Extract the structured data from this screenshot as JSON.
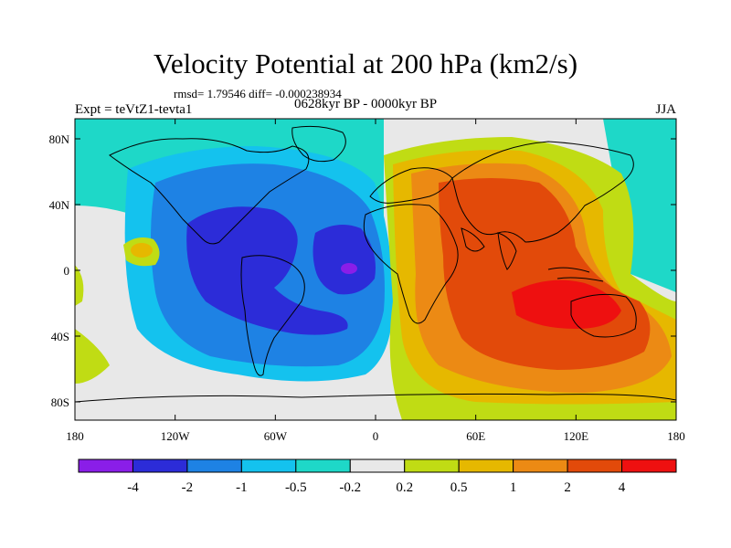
{
  "header": {
    "title": "Velocity Potential at 200 hPa (km2/s)",
    "stats": "rmsd= 1.79546 diff= -0.000238934",
    "experiment": "Expt = teVtZ1-tevta1",
    "period": "0628kyr BP - 0000kyr BP",
    "season": "JJA"
  },
  "map": {
    "x_ticks": [
      "180",
      "120W",
      "60W",
      "0",
      "60E",
      "120E",
      "180"
    ],
    "y_ticks": [
      "80N",
      "40N",
      "0",
      "40S",
      "80S"
    ],
    "colors": {
      "c_lt_m4": "#8a1ee8",
      "c_m4_m2": "#2c2cd8",
      "c_m2_m1": "#1e82e4",
      "c_m1_m05": "#14c2ee",
      "c_m05_m02": "#1ed8c8",
      "c_m02_02": "#e8e8e8",
      "c_02_05": "#c0dc14",
      "c_05_1": "#e6b800",
      "c_1_2": "#ec8a14",
      "c_2_4": "#e24a0a",
      "c_gt_4": "#ee1010"
    }
  },
  "colorbar": {
    "levels": [
      "-4",
      "-2",
      "-1",
      "-0.5",
      "-0.2",
      "0.2",
      "0.5",
      "1",
      "2",
      "4"
    ],
    "colors": [
      "#8a1ee8",
      "#2c2cd8",
      "#1e82e4",
      "#14c2ee",
      "#1ed8c8",
      "#e8e8e8",
      "#c0dc14",
      "#e6b800",
      "#ec8a14",
      "#e24a0a",
      "#ee1010"
    ]
  }
}
